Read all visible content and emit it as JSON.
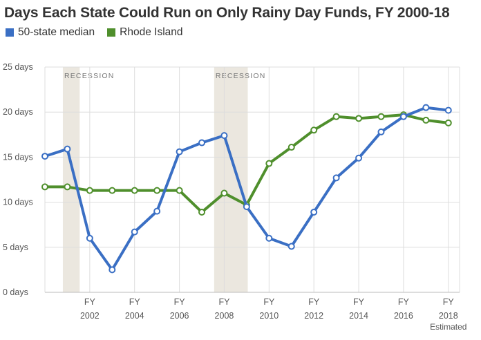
{
  "chart_data": {
    "type": "line",
    "title": "Days Each State Could Run on Only Rainy Day Funds, FY 2000-18",
    "x": [
      2000,
      2001,
      2002,
      2003,
      2004,
      2005,
      2006,
      2007,
      2008,
      2009,
      2010,
      2011,
      2012,
      2013,
      2014,
      2015,
      2016,
      2017,
      2018
    ],
    "series": [
      {
        "name": "50-state median",
        "color": "#3a6fc4",
        "values": [
          15.1,
          15.9,
          6.0,
          2.5,
          6.7,
          9.0,
          15.6,
          16.6,
          17.4,
          9.5,
          6.0,
          5.1,
          8.9,
          12.7,
          14.9,
          17.8,
          19.5,
          20.5,
          20.2
        ]
      },
      {
        "name": "Rhode Island",
        "color": "#4f8f2c",
        "values": [
          11.7,
          11.7,
          11.3,
          11.3,
          11.3,
          11.3,
          11.3,
          8.9,
          11.0,
          9.7,
          14.3,
          16.1,
          18.0,
          19.5,
          19.3,
          19.5,
          19.7,
          19.1,
          18.8
        ]
      }
    ],
    "y_ticks": [
      "0 days",
      "5 days",
      "10 days",
      "15 days",
      "20 days",
      "25 days"
    ],
    "ylim": [
      0,
      25
    ],
    "xlim": [
      2000,
      2018.5
    ],
    "x_ticks": [
      {
        "x": 2002,
        "top": "FY",
        "bottom": "2002"
      },
      {
        "x": 2004,
        "top": "FY",
        "bottom": "2004"
      },
      {
        "x": 2006,
        "top": "FY",
        "bottom": "2006"
      },
      {
        "x": 2008,
        "top": "FY",
        "bottom": "2008"
      },
      {
        "x": 2010,
        "top": "FY",
        "bottom": "2010"
      },
      {
        "x": 2012,
        "top": "FY",
        "bottom": "2012"
      },
      {
        "x": 2014,
        "top": "FY",
        "bottom": "2014"
      },
      {
        "x": 2016,
        "top": "FY",
        "bottom": "2016"
      },
      {
        "x": 2018,
        "top": "FY",
        "bottom": "2018",
        "extra": "Estimated"
      }
    ],
    "recessions": [
      {
        "label": "RECESSION",
        "from": 2000.8,
        "to": 2001.55
      },
      {
        "label": "RECESSION",
        "from": 2007.55,
        "to": 2009.05
      }
    ],
    "grid": true,
    "legend_position": "top-left"
  }
}
